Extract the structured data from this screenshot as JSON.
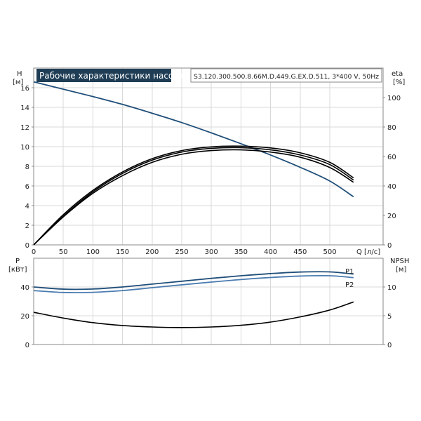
{
  "chart_data": [
    {
      "type": "line",
      "title": "Рабочие характеристики насоса",
      "subtitle": "S3.120.300.500.8.66M.D.449.G.EX.D.511, 3*400 V, 50Hz",
      "xlabel": "Q [л/с]",
      "ylabel_left": "H",
      "ylabel_left_unit": "[м]",
      "ylabel_right": "eta",
      "ylabel_right_unit": "[%]",
      "xlim": [
        0,
        590
      ],
      "ylim_left": [
        0,
        18
      ],
      "ylim_right": [
        0,
        120
      ],
      "x_ticks": [
        "0",
        "50",
        "100",
        "150",
        "200",
        "250",
        "300",
        "350",
        "400",
        "450",
        "500"
      ],
      "y_ticks_left": [
        "0",
        "2",
        "4",
        "6",
        "8",
        "10",
        "12",
        "14",
        "16"
      ],
      "y_ticks_right": [
        "0",
        "20",
        "40",
        "60",
        "80",
        "100"
      ],
      "grid": true,
      "series": [
        {
          "axis": "left",
          "color": "#1f4e79",
          "x": [
            0,
            50,
            100,
            150,
            200,
            250,
            300,
            350,
            400,
            450,
            500,
            540
          ],
          "values": [
            16.6,
            15.85,
            15.1,
            14.3,
            13.4,
            12.45,
            11.4,
            10.3,
            9.15,
            7.9,
            6.5,
            4.9
          ]
        },
        {
          "axis": "right",
          "color": "#000000",
          "x": [
            0,
            50,
            100,
            150,
            200,
            250,
            300,
            350,
            400,
            450,
            500,
            540
          ],
          "values": [
            0,
            19,
            35,
            47,
            56,
            61.5,
            64,
            64.5,
            63,
            59.5,
            52.5,
            42.5
          ]
        },
        {
          "axis": "right",
          "color": "#000000",
          "x": [
            0,
            50,
            100,
            150,
            200,
            250,
            300,
            350,
            400,
            450,
            500,
            540
          ],
          "values": [
            0,
            20.5,
            37,
            49.5,
            58.5,
            64,
            66.5,
            67,
            65.8,
            62.5,
            56,
            45.5
          ]
        },
        {
          "axis": "right",
          "color": "#000000",
          "x": [
            0,
            50,
            100,
            150,
            200,
            250,
            300,
            350,
            400,
            450,
            500,
            540
          ],
          "values": [
            0,
            19.5,
            36,
            48.5,
            57.5,
            63,
            65.5,
            66,
            64.5,
            61,
            54.5,
            44
          ]
        }
      ]
    },
    {
      "type": "line",
      "xlim": [
        0,
        590
      ],
      "ylabel_left": "P",
      "ylabel_left_unit": "[кВт]",
      "ylabel_right": "NPSH",
      "ylabel_right_unit": "[м]",
      "ylim_left": [
        0,
        60
      ],
      "ylim_right": [
        0,
        15
      ],
      "y_ticks_left": [
        "0",
        "20",
        "40"
      ],
      "y_ticks_right": [
        "0",
        "5",
        "10"
      ],
      "grid": true,
      "series": [
        {
          "name": "P1",
          "axis": "left",
          "color": "#1f4e79",
          "x": [
            0,
            50,
            100,
            150,
            200,
            250,
            300,
            350,
            400,
            450,
            500,
            540
          ],
          "values": [
            40,
            38.5,
            38.6,
            40,
            42,
            44,
            46,
            47.8,
            49.3,
            50.4,
            50.5,
            49
          ]
        },
        {
          "name": "P2",
          "axis": "left",
          "color": "#4a7bb0",
          "x": [
            0,
            50,
            100,
            150,
            200,
            250,
            300,
            350,
            400,
            450,
            500,
            540
          ],
          "values": [
            37.5,
            36.2,
            36.3,
            37.5,
            39.5,
            41.5,
            43.4,
            45.2,
            46.6,
            47.6,
            47.8,
            46.5
          ]
        },
        {
          "axis": "right",
          "color": "#000000",
          "x": [
            0,
            50,
            100,
            150,
            200,
            250,
            300,
            350,
            400,
            450,
            500,
            540
          ],
          "values": [
            5.6,
            4.6,
            3.8,
            3.3,
            3.05,
            2.95,
            3.05,
            3.35,
            3.9,
            4.8,
            6.0,
            7.4
          ]
        }
      ]
    }
  ]
}
